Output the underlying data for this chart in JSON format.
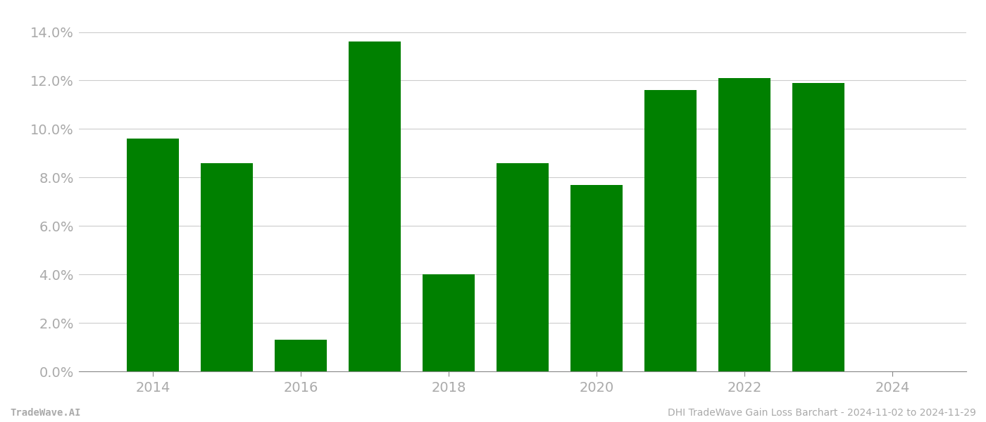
{
  "years": [
    2014,
    2015,
    2016,
    2017,
    2018,
    2019,
    2020,
    2021,
    2022,
    2023
  ],
  "values": [
    0.096,
    0.086,
    0.013,
    0.136,
    0.04,
    0.086,
    0.077,
    0.116,
    0.121,
    0.119
  ],
  "bar_color": "#008000",
  "background_color": "#ffffff",
  "grid_color": "#cccccc",
  "ylim": [
    0,
    0.148
  ],
  "yticks": [
    0.0,
    0.02,
    0.04,
    0.06,
    0.08,
    0.1,
    0.12,
    0.14
  ],
  "xtick_labels": [
    2014,
    2016,
    2018,
    2020,
    2022,
    2024
  ],
  "xlim": [
    2013.0,
    2025.0
  ],
  "footer_left": "TradeWave.AI",
  "footer_right": "DHI TradeWave Gain Loss Barchart - 2024-11-02 to 2024-11-29",
  "tick_label_color": "#aaaaaa",
  "footer_color": "#aaaaaa",
  "tick_fontsize": 14,
  "footer_fontsize": 10,
  "bar_width": 0.7
}
